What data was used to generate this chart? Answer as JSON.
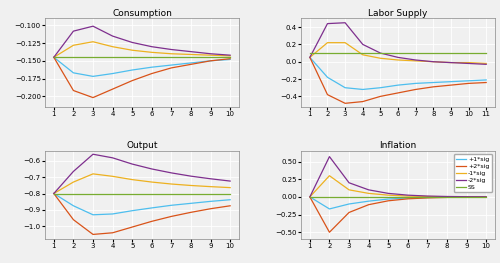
{
  "titles": [
    "Consumption",
    "Labor Supply",
    "Output",
    "Inflation"
  ],
  "legend_labels": [
    "+1*sig",
    "+2*sig",
    "-1*sig",
    "-2*sig",
    "SS"
  ],
  "colors": [
    "#4DBEEE",
    "#D95319",
    "#EDB120",
    "#7E2F8E",
    "#77AC30"
  ],
  "x": [
    1,
    2,
    3,
    4,
    5,
    6,
    7,
    8,
    9,
    10
  ],
  "x_labor": [
    1,
    2,
    3,
    4,
    5,
    6,
    7,
    8,
    9,
    10,
    11
  ],
  "consumption": {
    "+1*sig": [
      -0.145,
      -0.167,
      -0.172,
      -0.168,
      -0.163,
      -0.159,
      -0.156,
      -0.153,
      -0.15,
      -0.148
    ],
    "+2*sig": [
      -0.145,
      -0.192,
      -0.202,
      -0.19,
      -0.178,
      -0.168,
      -0.16,
      -0.155,
      -0.15,
      -0.147
    ],
    "-1*sig": [
      -0.145,
      -0.128,
      -0.123,
      -0.13,
      -0.135,
      -0.138,
      -0.14,
      -0.141,
      -0.142,
      -0.143
    ],
    "-2*sig": [
      -0.145,
      -0.108,
      -0.101,
      -0.115,
      -0.124,
      -0.13,
      -0.134,
      -0.137,
      -0.14,
      -0.142
    ],
    "SS": [
      -0.145,
      -0.145,
      -0.145,
      -0.145,
      -0.145,
      -0.145,
      -0.145,
      -0.145,
      -0.145,
      -0.145
    ]
  },
  "labor": {
    "+1*sig": [
      0.05,
      -0.18,
      -0.3,
      -0.32,
      -0.3,
      -0.27,
      -0.25,
      -0.24,
      -0.23,
      -0.22,
      -0.21
    ],
    "+2*sig": [
      0.05,
      -0.38,
      -0.48,
      -0.46,
      -0.4,
      -0.36,
      -0.32,
      -0.29,
      -0.27,
      -0.25,
      -0.24
    ],
    "-1*sig": [
      0.05,
      0.22,
      0.22,
      0.08,
      0.04,
      0.02,
      0.01,
      0.0,
      -0.01,
      -0.01,
      -0.02
    ],
    "-2*sig": [
      0.05,
      0.44,
      0.45,
      0.2,
      0.1,
      0.05,
      0.02,
      0.0,
      -0.01,
      -0.02,
      -0.03
    ],
    "SS": [
      0.1,
      0.1,
      0.1,
      0.1,
      0.1,
      0.1,
      0.1,
      0.1,
      0.1,
      0.1,
      0.1
    ]
  },
  "output": {
    "+1*sig": [
      -0.8,
      -0.875,
      -0.93,
      -0.925,
      -0.905,
      -0.888,
      -0.872,
      -0.86,
      -0.848,
      -0.838
    ],
    "+2*sig": [
      -0.8,
      -0.96,
      -1.05,
      -1.04,
      -1.005,
      -0.97,
      -0.94,
      -0.915,
      -0.893,
      -0.875
    ],
    "-1*sig": [
      -0.8,
      -0.73,
      -0.68,
      -0.695,
      -0.715,
      -0.73,
      -0.742,
      -0.751,
      -0.758,
      -0.764
    ],
    "-2*sig": [
      -0.8,
      -0.665,
      -0.56,
      -0.582,
      -0.62,
      -0.65,
      -0.674,
      -0.694,
      -0.71,
      -0.724
    ],
    "SS": [
      -0.8,
      -0.8,
      -0.8,
      -0.8,
      -0.8,
      -0.8,
      -0.8,
      -0.8,
      -0.8,
      -0.8
    ]
  },
  "inflation": {
    "+1*sig": [
      0.0,
      -0.17,
      -0.1,
      -0.06,
      -0.03,
      -0.015,
      -0.008,
      -0.004,
      -0.002,
      -0.001
    ],
    "+2*sig": [
      0.0,
      -0.5,
      -0.22,
      -0.11,
      -0.055,
      -0.027,
      -0.014,
      -0.007,
      -0.003,
      -0.002
    ],
    "-1*sig": [
      0.0,
      0.3,
      0.1,
      0.05,
      0.025,
      0.012,
      0.006,
      0.003,
      0.002,
      0.001
    ],
    "-2*sig": [
      0.0,
      0.57,
      0.2,
      0.1,
      0.05,
      0.025,
      0.012,
      0.006,
      0.003,
      0.002
    ],
    "SS": [
      0.0,
      0.0,
      0.0,
      0.0,
      0.0,
      0.0,
      0.0,
      0.0,
      0.0,
      0.0
    ]
  },
  "ylims": {
    "consumption": [
      -0.215,
      -0.09
    ],
    "labor": [
      -0.52,
      0.5
    ],
    "output": [
      -1.08,
      -0.54
    ],
    "inflation": [
      -0.6,
      0.65
    ]
  },
  "bg_color": "#f0f0f0"
}
